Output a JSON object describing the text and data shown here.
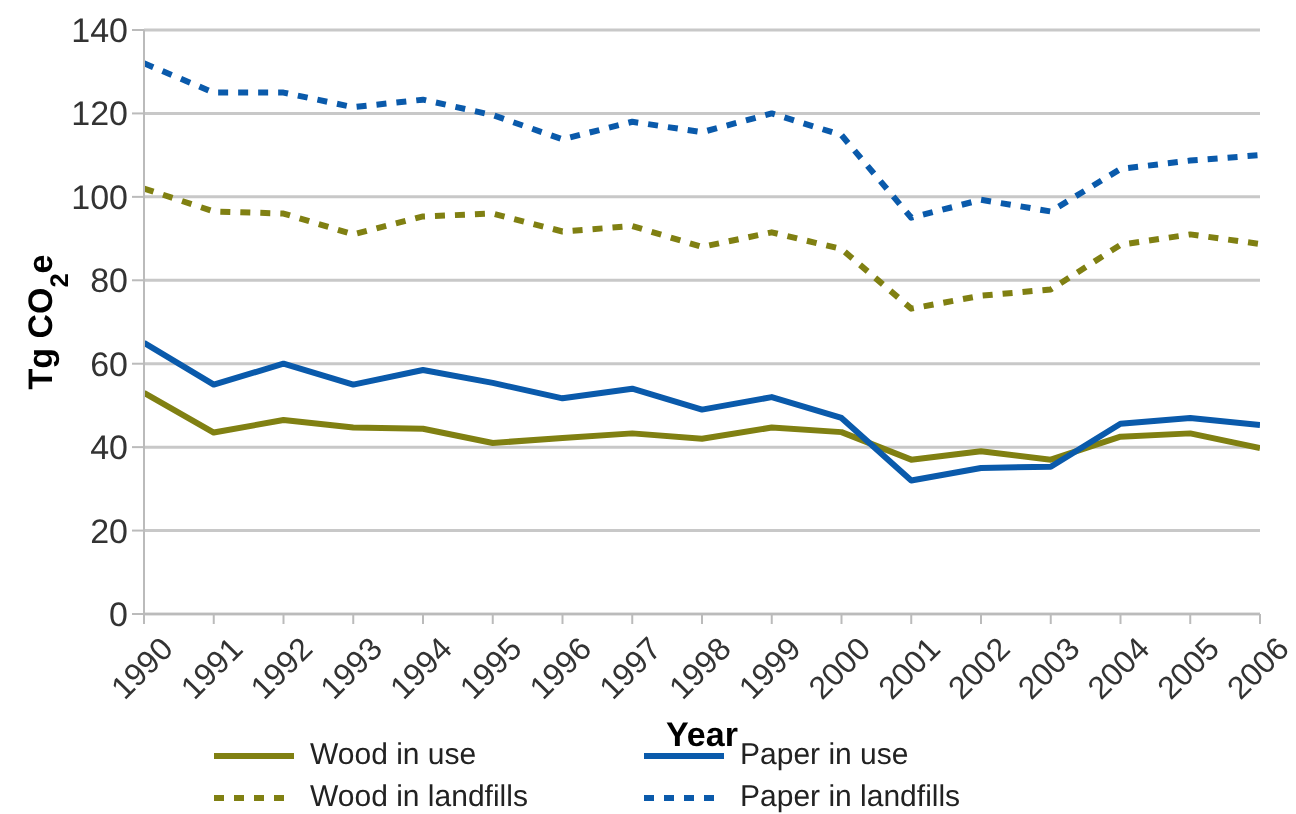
{
  "chart_data": {
    "type": "line",
    "xlabel": "Year",
    "ylabel": "Tg CO$_{2}$e",
    "x": [
      1990,
      1991,
      1992,
      1993,
      1994,
      1995,
      1996,
      1997,
      1998,
      1999,
      2000,
      2001,
      2002,
      2003,
      2004,
      2005,
      2006
    ],
    "series": [
      {
        "name": "Wood in use",
        "color": "#808012",
        "line_style": "solid",
        "values": [
          53,
          43.5,
          46.5,
          44.7,
          44.4,
          41,
          42.2,
          43.3,
          42,
          44.7,
          43.6,
          37,
          39,
          37,
          42.5,
          43.3,
          39.8
        ]
      },
      {
        "name": "Paper in use",
        "color": "#0a5aab",
        "line_style": "solid",
        "values": [
          65,
          55,
          60,
          55,
          58.5,
          55.4,
          51.7,
          54,
          49,
          52,
          47,
          32,
          35,
          35.3,
          45.6,
          47,
          45.3
        ]
      },
      {
        "name": "Wood in landfills",
        "color": "#808012",
        "line_style": "dashed",
        "values": [
          102,
          96.5,
          96,
          91,
          95.3,
          96,
          91.7,
          93,
          88,
          91.5,
          87.5,
          73.2,
          76.3,
          77.8,
          88.5,
          91,
          88.7
        ]
      },
      {
        "name": "Paper in landfills",
        "color": "#0a5aab",
        "line_style": "dashed",
        "values": [
          132,
          125,
          125,
          121.5,
          123.3,
          119.6,
          113.8,
          118,
          115.5,
          120,
          114.8,
          95,
          99.3,
          96.5,
          106.7,
          108.7,
          110
        ]
      }
    ],
    "xlim": [
      1990,
      2006
    ],
    "xticks": [
      1990,
      1991,
      1992,
      1993,
      1994,
      1995,
      1996,
      1997,
      1998,
      1999,
      2000,
      2001,
      2002,
      2003,
      2004,
      2005,
      2006
    ],
    "ylim": [
      0,
      140
    ],
    "yticks": [
      0,
      20,
      40,
      60,
      80,
      100,
      120,
      140
    ],
    "grid": "y",
    "legend": "bottom",
    "marker": "none"
  }
}
